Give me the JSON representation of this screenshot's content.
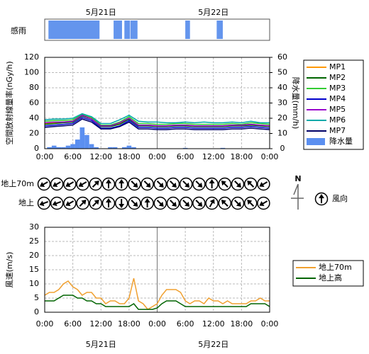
{
  "chart_data": [
    {
      "type": "timeline",
      "label": "感雨",
      "xlim": [
        0,
        48
      ],
      "color": "#6495ed",
      "dates": [
        {
          "value": 12,
          "label": "5月21日"
        },
        {
          "value": 36,
          "label": "5月22日"
        }
      ],
      "periods": [
        [
          0.8,
          11.7
        ],
        [
          14.7,
          16.5
        ],
        [
          17,
          18.2
        ],
        [
          18.3,
          19.8
        ],
        [
          30,
          31
        ],
        [
          36.7,
          38
        ]
      ]
    },
    {
      "type": "line",
      "y_label": "空間放射線量率(nGy/h)",
      "y2_label": "降水量(mm/h)",
      "xlim": [
        0,
        48
      ],
      "ylim": [
        0,
        120
      ],
      "yticks": [
        0,
        20,
        40,
        60,
        80,
        100,
        120
      ],
      "y2lim": [
        0,
        60
      ],
      "y2ticks": [
        0,
        10,
        20,
        30,
        40,
        50,
        60
      ],
      "grid": true,
      "day_boundary": 24,
      "xticks": [
        {
          "value": 0,
          "label": "0:00"
        },
        {
          "value": 6,
          "label": "6:00"
        },
        {
          "value": 12,
          "label": "12:00"
        },
        {
          "value": 18,
          "label": "18:00"
        },
        {
          "value": 24,
          "label": "0:00"
        },
        {
          "value": 30,
          "label": "6:00"
        },
        {
          "value": 36,
          "label": "12:00"
        },
        {
          "value": 42,
          "label": "18:00"
        },
        {
          "value": 48,
          "label": "0:00"
        }
      ],
      "x": [
        0,
        2,
        4,
        6,
        8,
        10,
        12,
        14,
        16,
        18,
        20,
        22,
        24,
        26,
        28,
        30,
        32,
        34,
        36,
        38,
        40,
        42,
        44,
        46,
        48
      ],
      "series": [
        {
          "name": "MP1",
          "color": "#ff9900",
          "values": [
            33,
            34,
            35,
            36,
            44,
            40,
            30,
            30,
            33,
            40,
            31,
            31,
            30,
            30,
            31,
            31,
            30,
            30,
            30,
            30,
            31,
            31,
            32,
            31,
            30
          ]
        },
        {
          "name": "MP2",
          "color": "#006400",
          "values": [
            32,
            33,
            34,
            35,
            43,
            39,
            29,
            29,
            32,
            39,
            30,
            30,
            29,
            29,
            30,
            30,
            29,
            29,
            29,
            29,
            30,
            30,
            31,
            30,
            29
          ]
        },
        {
          "name": "MP3",
          "color": "#33cc33",
          "values": [
            36,
            37,
            37,
            38,
            45,
            41,
            31,
            31,
            35,
            42,
            33,
            33,
            32,
            32,
            33,
            33,
            32,
            32,
            32,
            32,
            33,
            32,
            34,
            33,
            32
          ]
        },
        {
          "name": "MP4",
          "color": "#0000cc",
          "values": [
            30,
            31,
            32,
            33,
            41,
            37,
            27,
            27,
            30,
            37,
            28,
            28,
            27,
            27,
            28,
            28,
            27,
            27,
            27,
            27,
            28,
            28,
            29,
            28,
            27
          ]
        },
        {
          "name": "MP5",
          "color": "#9900cc",
          "values": [
            34,
            35,
            35,
            36,
            44,
            39,
            30,
            30,
            34,
            40,
            31,
            31,
            30,
            30,
            31,
            31,
            30,
            30,
            30,
            30,
            31,
            31,
            32,
            31,
            30
          ]
        },
        {
          "name": "MP6",
          "color": "#00aaaa",
          "values": [
            38,
            39,
            39,
            40,
            46,
            42,
            33,
            33,
            38,
            44,
            36,
            35,
            35,
            34,
            34,
            35,
            34,
            35,
            34,
            34,
            35,
            34,
            36,
            34,
            34
          ]
        },
        {
          "name": "MP7",
          "color": "#000066",
          "values": [
            28,
            29,
            30,
            31,
            39,
            35,
            26,
            26,
            29,
            35,
            26,
            26,
            25,
            25,
            26,
            26,
            25,
            25,
            25,
            25,
            26,
            26,
            27,
            26,
            25
          ]
        },
        {
          "name": "降水量",
          "type": "bar",
          "axis": "y2",
          "color": "#5b8ff0",
          "x": [
            1,
            2,
            3,
            4,
            5,
            6,
            7,
            8,
            9,
            10,
            11,
            14,
            15,
            17,
            18,
            19,
            30,
            38
          ],
          "values": [
            1,
            2,
            1,
            1,
            2,
            3,
            6,
            14,
            9,
            3,
            1,
            1,
            1,
            1,
            2,
            1,
            0.5,
            0.5
          ]
        }
      ]
    },
    {
      "type": "wind-arrows",
      "legend": "風向",
      "north_label": "N",
      "rows": [
        {
          "name": "地上70m",
          "values": [
            240,
            240,
            240,
            240,
            45,
            0,
            0,
            135,
            135,
            135,
            135,
            135,
            135,
            0,
            315,
            135,
            315,
            240
          ]
        },
        {
          "name": "地上",
          "values": [
            250,
            250,
            240,
            45,
            45,
            0,
            180,
            135,
            0,
            135,
            135,
            135,
            135,
            30,
            315,
            135,
            315,
            240
          ]
        }
      ]
    },
    {
      "type": "line",
      "y_label": "風速(m/s)",
      "xlim": [
        0,
        48
      ],
      "ylim": [
        0,
        30
      ],
      "yticks": [
        0,
        5,
        10,
        15,
        20,
        25,
        30
      ],
      "grid": true,
      "day_boundary": 24,
      "xticks": [
        {
          "value": 0,
          "label": "0:00"
        },
        {
          "value": 6,
          "label": "6:00"
        },
        {
          "value": 12,
          "label": "12:00"
        },
        {
          "value": 18,
          "label": "18:00"
        },
        {
          "value": 24,
          "label": "0:00"
        },
        {
          "value": 30,
          "label": "6:00"
        },
        {
          "value": 36,
          "label": "12:00"
        },
        {
          "value": 42,
          "label": "18:00"
        },
        {
          "value": 48,
          "label": "0:00"
        }
      ],
      "dates": [
        {
          "value": 12,
          "label": "5月21日"
        },
        {
          "value": 36,
          "label": "5月22日"
        }
      ],
      "x": [
        0,
        1,
        2,
        3,
        4,
        5,
        6,
        7,
        8,
        9,
        10,
        11,
        12,
        13,
        14,
        15,
        16,
        17,
        18,
        19,
        20,
        21,
        22,
        23,
        24,
        25,
        26,
        27,
        28,
        29,
        30,
        31,
        32,
        33,
        34,
        35,
        36,
        37,
        38,
        39,
        40,
        41,
        42,
        43,
        44,
        45,
        46,
        47,
        48
      ],
      "series": [
        {
          "name": "地上70m",
          "color": "#f0a030",
          "values": [
            6,
            7,
            7,
            8,
            10,
            11,
            9,
            8,
            6,
            7,
            7,
            5,
            5,
            3,
            4,
            4,
            3,
            3,
            5,
            12,
            4,
            3,
            1,
            2,
            3,
            6,
            8,
            8,
            8,
            7,
            4,
            3,
            4,
            4,
            3,
            5,
            4,
            4,
            3,
            4,
            3,
            3,
            3,
            3,
            4,
            4,
            5,
            4,
            4
          ]
        },
        {
          "name": "地上高",
          "color": "#006400",
          "values": [
            4,
            4,
            4,
            5,
            6,
            6,
            6,
            5,
            5,
            4,
            4,
            3,
            3,
            2,
            2,
            2,
            2,
            2,
            2,
            3,
            1,
            1,
            1,
            1,
            1.5,
            3,
            4,
            4,
            4,
            3,
            2,
            2,
            2,
            2,
            2,
            2,
            2,
            2,
            2,
            2,
            2,
            2,
            2,
            2,
            3,
            3,
            3,
            3,
            2
          ]
        }
      ]
    }
  ]
}
